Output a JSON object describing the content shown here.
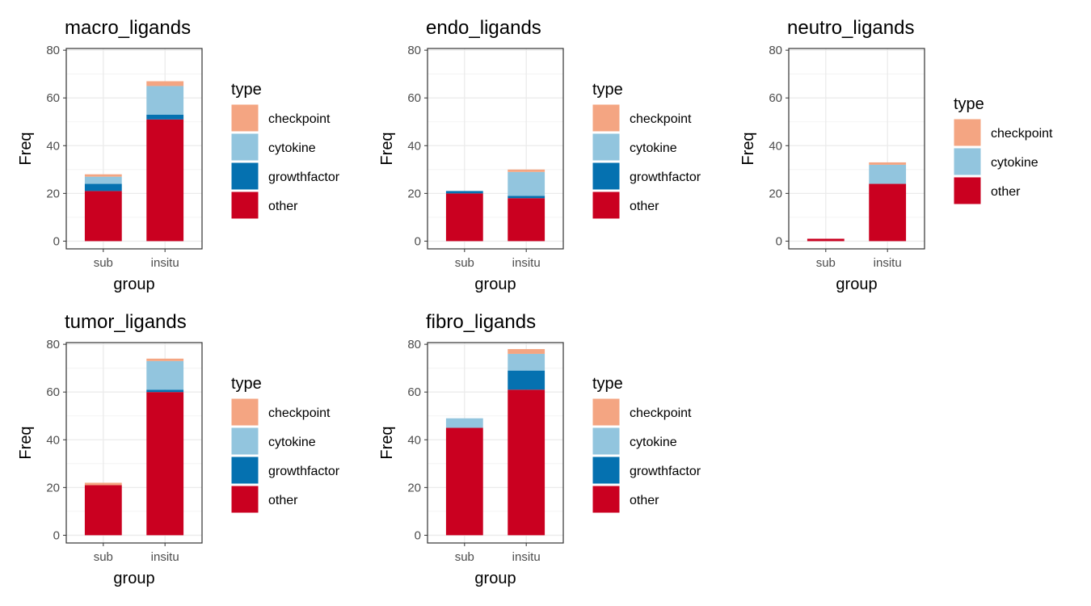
{
  "palette": {
    "checkpoint": "#F4A582",
    "cytokine": "#92C5DE",
    "growthfactor": "#0571B0",
    "other": "#CA0020"
  },
  "chart_data": [
    {
      "type": "bar",
      "stacked": true,
      "title": "macro_ligands",
      "xlabel": "group",
      "ylabel": "Freq",
      "ylim": [
        0,
        80
      ],
      "yticks": [
        0,
        20,
        40,
        60,
        80
      ],
      "categories": [
        "sub",
        "insitu"
      ],
      "legend_title": "type",
      "legend_position": "right",
      "legend": [
        "checkpoint",
        "cytokine",
        "growthfactor",
        "other"
      ],
      "series": [
        {
          "name": "other",
          "values": [
            21,
            51
          ]
        },
        {
          "name": "growthfactor",
          "values": [
            3,
            2
          ]
        },
        {
          "name": "cytokine",
          "values": [
            3,
            12
          ]
        },
        {
          "name": "checkpoint",
          "values": [
            1,
            2
          ]
        }
      ]
    },
    {
      "type": "bar",
      "stacked": true,
      "title": "endo_ligands",
      "xlabel": "group",
      "ylabel": "Freq",
      "ylim": [
        0,
        80
      ],
      "yticks": [
        0,
        20,
        40,
        60,
        80
      ],
      "categories": [
        "sub",
        "insitu"
      ],
      "legend_title": "type",
      "legend_position": "right",
      "legend": [
        "checkpoint",
        "cytokine",
        "growthfactor",
        "other"
      ],
      "series": [
        {
          "name": "other",
          "values": [
            20,
            18
          ]
        },
        {
          "name": "growthfactor",
          "values": [
            1,
            1
          ]
        },
        {
          "name": "cytokine",
          "values": [
            0,
            10
          ]
        },
        {
          "name": "checkpoint",
          "values": [
            0,
            1
          ]
        }
      ]
    },
    {
      "type": "bar",
      "stacked": true,
      "title": "neutro_ligands",
      "xlabel": "group",
      "ylabel": "Freq",
      "ylim": [
        0,
        80
      ],
      "yticks": [
        0,
        20,
        40,
        60,
        80
      ],
      "categories": [
        "sub",
        "insitu"
      ],
      "legend_title": "type",
      "legend_position": "right",
      "legend": [
        "checkpoint",
        "cytokine",
        "other"
      ],
      "series": [
        {
          "name": "other",
          "values": [
            1,
            24
          ]
        },
        {
          "name": "cytokine",
          "values": [
            0,
            8
          ]
        },
        {
          "name": "checkpoint",
          "values": [
            0,
            1
          ]
        }
      ]
    },
    {
      "type": "bar",
      "stacked": true,
      "title": "tumor_ligands",
      "xlabel": "group",
      "ylabel": "Freq",
      "ylim": [
        0,
        80
      ],
      "yticks": [
        0,
        20,
        40,
        60,
        80
      ],
      "categories": [
        "sub",
        "insitu"
      ],
      "legend_title": "type",
      "legend_position": "right",
      "legend": [
        "checkpoint",
        "cytokine",
        "growthfactor",
        "other"
      ],
      "series": [
        {
          "name": "other",
          "values": [
            21,
            60
          ]
        },
        {
          "name": "growthfactor",
          "values": [
            0,
            1
          ]
        },
        {
          "name": "cytokine",
          "values": [
            0,
            12
          ]
        },
        {
          "name": "checkpoint",
          "values": [
            1,
            1
          ]
        }
      ]
    },
    {
      "type": "bar",
      "stacked": true,
      "title": "fibro_ligands",
      "xlabel": "group",
      "ylabel": "Freq",
      "ylim": [
        0,
        80
      ],
      "yticks": [
        0,
        20,
        40,
        60,
        80
      ],
      "categories": [
        "sub",
        "insitu"
      ],
      "legend_title": "type",
      "legend_position": "right",
      "legend": [
        "checkpoint",
        "cytokine",
        "growthfactor",
        "other"
      ],
      "series": [
        {
          "name": "other",
          "values": [
            45,
            61
          ]
        },
        {
          "name": "growthfactor",
          "values": [
            0,
            8
          ]
        },
        {
          "name": "cytokine",
          "values": [
            4,
            7
          ]
        },
        {
          "name": "checkpoint",
          "values": [
            0,
            2
          ]
        }
      ]
    }
  ]
}
